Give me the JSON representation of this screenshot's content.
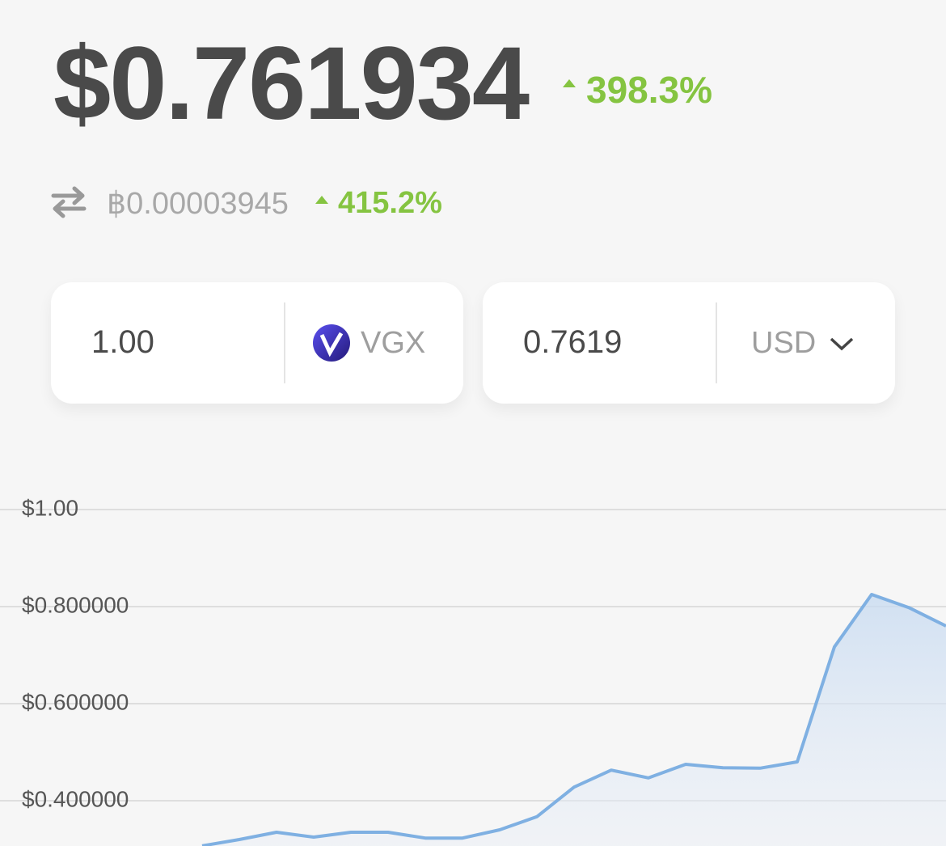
{
  "price": {
    "value": "$0.761934",
    "change": "398.3%"
  },
  "btc_price": {
    "value": "฿0.00003945",
    "change": "415.2%"
  },
  "converter": {
    "from_amount": "1.00",
    "from_currency": "VGX",
    "to_amount": "0.7619",
    "to_currency": "USD"
  },
  "chart_data": {
    "type": "area",
    "color": "#7fb0e2",
    "categories": [
      null,
      null,
      null,
      null,
      null,
      null,
      null,
      null,
      null,
      null,
      null,
      null,
      null,
      null,
      null,
      null,
      null,
      null,
      null,
      null,
      null
    ],
    "values": [
      0.307,
      0.32,
      0.335,
      0.325,
      0.335,
      0.335,
      0.323,
      0.323,
      0.34,
      0.367,
      0.428,
      0.463,
      0.447,
      0.475,
      0.468,
      0.467,
      0.48,
      0.717,
      0.825,
      0.798,
      0.76
    ],
    "ylim": [
      0.3,
      1.1
    ],
    "yticks": [
      {
        "value": 0.4,
        "label": "$0.400000"
      },
      {
        "value": 0.6,
        "label": "$0.600000"
      },
      {
        "value": 0.8,
        "label": "$0.800000"
      },
      {
        "value": 1,
        "label": "$1.00"
      }
    ],
    "grid": true
  }
}
